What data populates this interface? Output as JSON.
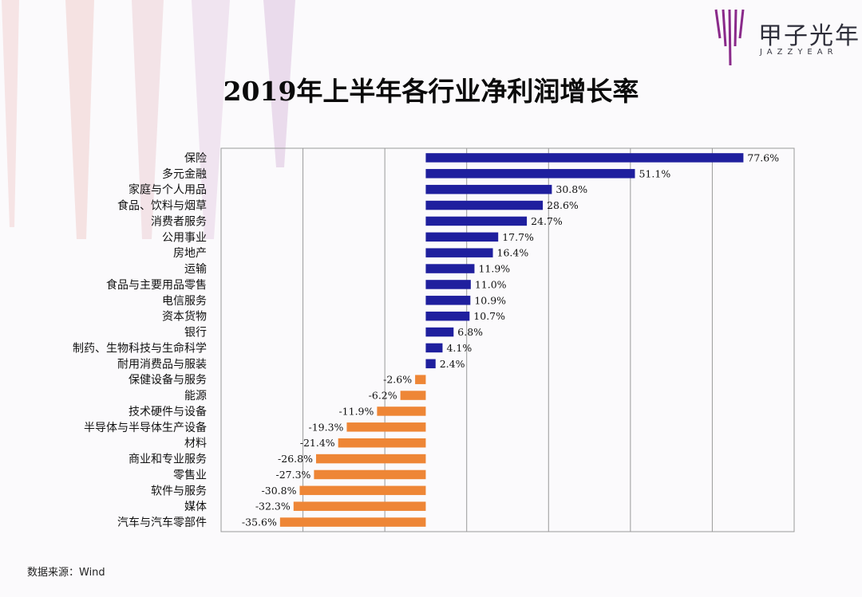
{
  "brand": {
    "name_cn": "甲子光年",
    "name_en": "JAZZYEAR"
  },
  "source": "数据来源：Wind",
  "colors": {
    "positive": "#1f1f9e",
    "negative": "#ee8636",
    "grid": "#9a9a9a",
    "logo": "#8a2a8a"
  },
  "chart_data": {
    "type": "bar",
    "orientation": "horizontal",
    "title": "2019年上半年各行业净利润增长率",
    "xlabel": "",
    "ylabel": "",
    "xlim": [
      -50,
      90
    ],
    "grid": true,
    "categories": [
      "保险",
      "多元金融",
      "家庭与个人用品",
      "食品、饮料与烟草",
      "消费者服务",
      "公用事业",
      "房地产",
      "运输",
      "食品与主要用品零售",
      "电信服务",
      "资本货物",
      "银行",
      "制药、生物科技与生命科学",
      "耐用消费品与服装",
      "保健设备与服务",
      "能源",
      "技术硬件与设备",
      "半导体与半导体生产设备",
      "材料",
      "商业和专业服务",
      "零售业",
      "软件与服务",
      "媒体",
      "汽车与汽车零部件"
    ],
    "values": [
      77.6,
      51.1,
      30.8,
      28.6,
      24.7,
      17.7,
      16.4,
      11.9,
      11.0,
      10.9,
      10.7,
      6.8,
      4.1,
      2.4,
      -2.6,
      -6.2,
      -11.9,
      -19.3,
      -21.4,
      -26.8,
      -27.3,
      -30.8,
      -32.3,
      -35.6
    ],
    "value_labels": [
      "77.6%",
      "51.1%",
      "30.8%",
      "28.6%",
      "24.7%",
      "17.7%",
      "16.4%",
      "11.9%",
      "11.0%",
      "10.9%",
      "10.7%",
      "6.8%",
      "4.1%",
      "2.4%",
      "-2.6%",
      "-6.2%",
      "-11.9%",
      "-19.3%",
      "-21.4%",
      "-26.8%",
      "-27.3%",
      "-30.8%",
      "-32.3%",
      "-35.6%"
    ]
  }
}
